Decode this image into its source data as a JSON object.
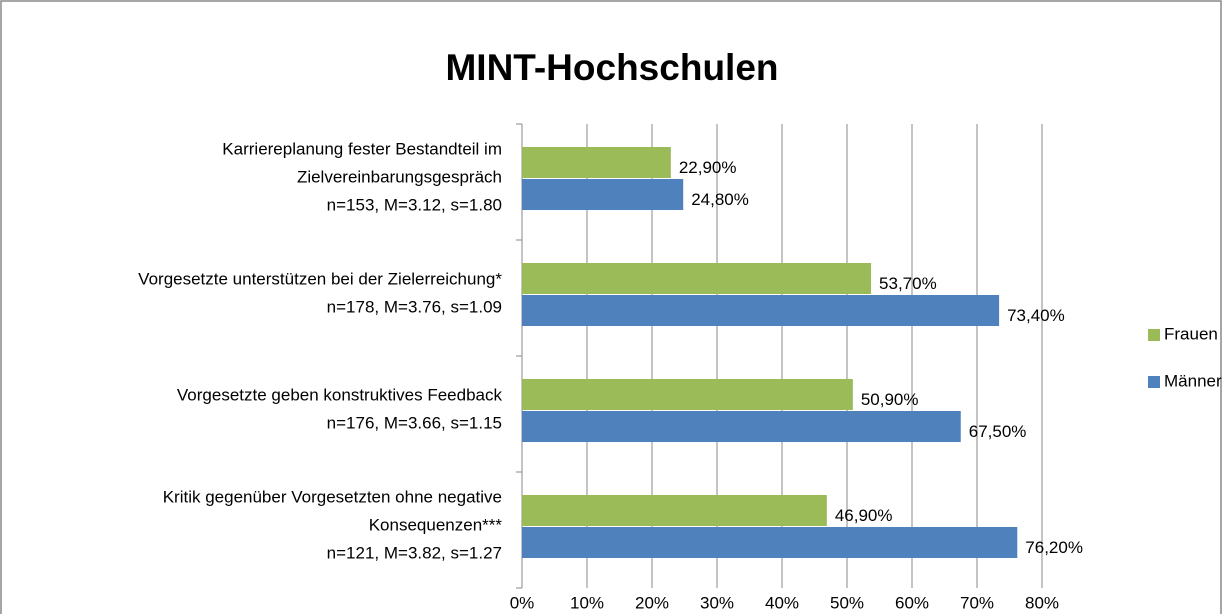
{
  "chart_data": {
    "type": "barh",
    "title": "MINT-Hochschulen",
    "categories": [
      [
        "Karriereplanung fester Bestandteil im",
        "Zielvereinbarungsgespräch",
        "n=153, M=3.12, s=1.80"
      ],
      [
        "Vorgesetzte unterstützen bei der Zielerreichung*",
        "n=178, M=3.76, s=1.09"
      ],
      [
        "Vorgesetzte geben konstruktives Feedback",
        "n=176, M=3.66, s=1.15"
      ],
      [
        "Kritik gegenüber Vorgesetzten ohne negative",
        "Konsequenzen***",
        "n=121, M=3.82, s=1.27"
      ]
    ],
    "series": [
      {
        "name": "Frauen",
        "color": "#9bbb59",
        "values": [
          22.9,
          53.7,
          50.9,
          46.9
        ],
        "value_labels": [
          "22,90%",
          "53,70%",
          "50,90%",
          "46,90%"
        ]
      },
      {
        "name": "Männer",
        "color": "#4f81bd",
        "values": [
          24.8,
          73.4,
          67.5,
          76.2
        ],
        "value_labels": [
          "24,80%",
          "73,40%",
          "67,50%",
          "76,20%"
        ]
      }
    ],
    "xlim": [
      0,
      80
    ],
    "xticks": [
      {
        "value": 0,
        "label": "0%"
      },
      {
        "value": 10,
        "label": "10%"
      },
      {
        "value": 20,
        "label": "20%"
      },
      {
        "value": 30,
        "label": "30%"
      },
      {
        "value": 40,
        "label": "40%"
      },
      {
        "value": 50,
        "label": "50%"
      },
      {
        "value": 60,
        "label": "60%"
      },
      {
        "value": 70,
        "label": "70%"
      },
      {
        "value": 80,
        "label": "80%"
      }
    ],
    "grid": true,
    "legend": "right"
  }
}
